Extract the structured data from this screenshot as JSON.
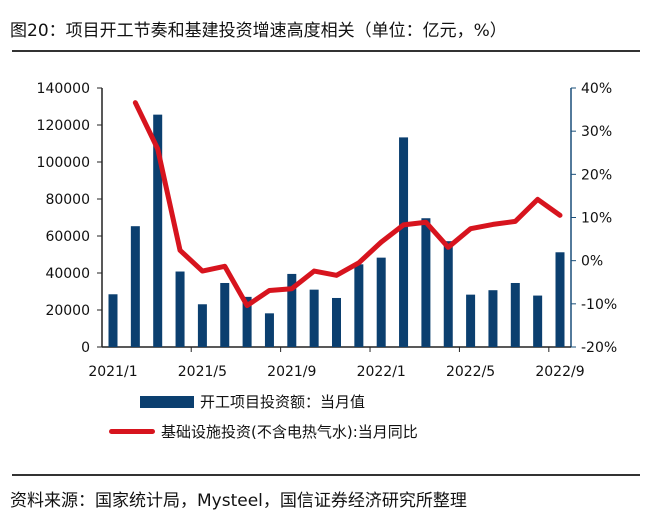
{
  "title": "图20：项目开工节奏和基建投资增速高度相关（单位：亿元，%）",
  "source": "资料来源：国家统计局，Mysteel，国信证券经济研究所整理",
  "chart_data": {
    "type": "bar+line",
    "categories": [
      "2021/1",
      "2021/2",
      "2021/3",
      "2021/4",
      "2021/5",
      "2021/6",
      "2021/7",
      "2021/8",
      "2021/9",
      "2021/10",
      "2021/11",
      "2021/12",
      "2022/1",
      "2022/2",
      "2022/3",
      "2022/4",
      "2022/5",
      "2022/6",
      "2022/7",
      "2022/8",
      "2022/9"
    ],
    "x_tick_labels": [
      "2021/1",
      "2021/5",
      "2021/9",
      "2022/1",
      "2022/5",
      "2022/9"
    ],
    "left_axis": {
      "ylim": [
        0,
        140000
      ],
      "ticks": [
        "0",
        "20000",
        "40000",
        "60000",
        "80000",
        "100000",
        "120000",
        "140000"
      ]
    },
    "right_axis": {
      "ylim": [
        -20,
        40
      ],
      "ticks": [
        "-20%",
        "-10%",
        "0%",
        "10%",
        "20%",
        "30%",
        "40%"
      ]
    },
    "series": [
      {
        "name": "开工项目投资额：当月值",
        "type": "bar",
        "axis": "left",
        "color": "#0b3f6f",
        "values": [
          28500,
          65300,
          125600,
          40800,
          23100,
          34600,
          27100,
          18200,
          39500,
          31000,
          26500,
          44700,
          48300,
          113300,
          69600,
          57200,
          28300,
          30700,
          34600,
          27800,
          51200
        ]
      },
      {
        "name": "基础设施投资(不含电热气水):当月同比",
        "type": "line",
        "axis": "right",
        "color": "#d7141e",
        "values": [
          null,
          36.6,
          25.9,
          2.4,
          -2.4,
          -1.3,
          -10.4,
          -6.9,
          -6.5,
          -2.4,
          -3.4,
          -0.5,
          4.3,
          8.3,
          8.9,
          3.1,
          7.4,
          8.4,
          9.1,
          14.2,
          10.5
        ]
      }
    ],
    "legend": "bottom",
    "grid": false
  }
}
